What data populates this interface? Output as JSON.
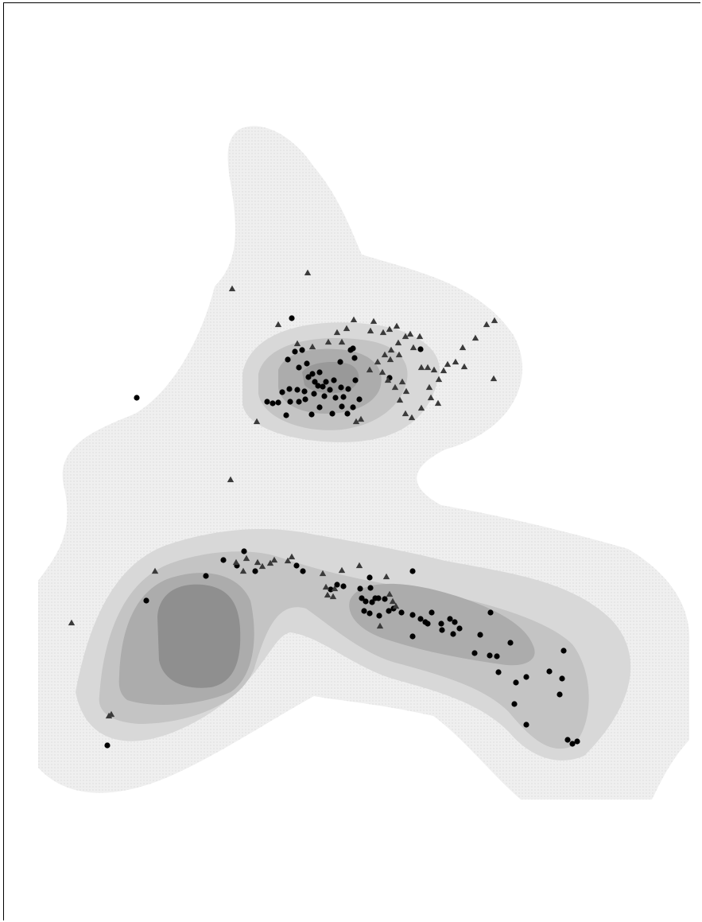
{
  "chart_data": {
    "type": "scatter",
    "subtype": "contour-density-overlay",
    "title": "",
    "xlabel": "",
    "ylabel": "",
    "axes_visible": false,
    "grid": false,
    "legend": "none",
    "background_style": "filled density contours (light to dark gray)",
    "colors": {
      "level_1": "#efefef",
      "level_2": "#d8d8d8",
      "level_3": "#c4c4c4",
      "level_4": "#acacac",
      "level_5": "#8f8f8f",
      "circle": "#000000",
      "triangle": "#3a3a3a"
    },
    "series": [
      {
        "marker": "circle",
        "points": [
          [
            367,
            400
          ],
          [
            172,
            500
          ],
          [
            428,
            455
          ],
          [
            441,
            440
          ],
          [
            446,
            450
          ],
          [
            444,
            438
          ],
          [
            380,
            440
          ],
          [
            371,
            442
          ],
          [
            362,
            452
          ],
          [
            376,
            462
          ],
          [
            386,
            457
          ],
          [
            393,
            470
          ],
          [
            402,
            468
          ],
          [
            410,
            480
          ],
          [
            420,
            478
          ],
          [
            429,
            487
          ],
          [
            438,
            489
          ],
          [
            447,
            478
          ],
          [
            452,
            502
          ],
          [
            444,
            512
          ],
          [
            437,
            520
          ],
          [
            430,
            511
          ],
          [
            418,
            520
          ],
          [
            402,
            512
          ],
          [
            392,
            521
          ],
          [
            384,
            502
          ],
          [
            376,
            505
          ],
          [
            365,
            505
          ],
          [
            360,
            522
          ],
          [
            350,
            506
          ],
          [
            343,
            507
          ],
          [
            336,
            505
          ],
          [
            355,
            493
          ],
          [
            364,
            489
          ],
          [
            374,
            490
          ],
          [
            383,
            492
          ],
          [
            395,
            495
          ],
          [
            400,
            485
          ],
          [
            408,
            498
          ],
          [
            415,
            490
          ],
          [
            422,
            500
          ],
          [
            432,
            499
          ],
          [
            396,
            480
          ],
          [
            406,
            486
          ],
          [
            388,
            474
          ],
          [
            490,
            475
          ],
          [
            529,
            439
          ],
          [
            307,
            693
          ],
          [
            281,
            704
          ],
          [
            298,
            711
          ],
          [
            259,
            724
          ],
          [
            321,
            718
          ],
          [
            184,
            755
          ],
          [
            135,
            937
          ],
          [
            373,
            711
          ],
          [
            381,
            718
          ],
          [
            519,
            718
          ],
          [
            416,
            741
          ],
          [
            424,
            735
          ],
          [
            432,
            737
          ],
          [
            453,
            740
          ],
          [
            465,
            726
          ],
          [
            466,
            739
          ],
          [
            472,
            752
          ],
          [
            460,
            756
          ],
          [
            455,
            752
          ],
          [
            468,
            757
          ],
          [
            476,
            752
          ],
          [
            484,
            753
          ],
          [
            489,
            768
          ],
          [
            477,
            774
          ],
          [
            465,
            771
          ],
          [
            458,
            768
          ],
          [
            495,
            765
          ],
          [
            505,
            770
          ],
          [
            519,
            773
          ],
          [
            529,
            778
          ],
          [
            535,
            782
          ],
          [
            538,
            784
          ],
          [
            543,
            770
          ],
          [
            555,
            784
          ],
          [
            556,
            792
          ],
          [
            566,
            778
          ],
          [
            572,
            782
          ],
          [
            578,
            790
          ],
          [
            570,
            797
          ],
          [
            519,
            800
          ],
          [
            604,
            798
          ],
          [
            617,
            770
          ],
          [
            642,
            808
          ],
          [
            597,
            821
          ],
          [
            616,
            824
          ],
          [
            625,
            825
          ],
          [
            627,
            845
          ],
          [
            649,
            858
          ],
          [
            662,
            851
          ],
          [
            691,
            844
          ],
          [
            707,
            853
          ],
          [
            709,
            818
          ],
          [
            704,
            873
          ],
          [
            647,
            885
          ],
          [
            662,
            911
          ],
          [
            714,
            930
          ],
          [
            720,
            935
          ],
          [
            726,
            932
          ]
        ]
      },
      {
        "marker": "triangle",
        "points": [
          [
            387,
            343
          ],
          [
            292,
            363
          ],
          [
            350,
            408
          ],
          [
            436,
            413
          ],
          [
            445,
            402
          ],
          [
            424,
            418
          ],
          [
            430,
            430
          ],
          [
            413,
            430
          ],
          [
            393,
            436
          ],
          [
            374,
            432
          ],
          [
            470,
            404
          ],
          [
            466,
            416
          ],
          [
            482,
            418
          ],
          [
            490,
            414
          ],
          [
            499,
            410
          ],
          [
            510,
            423
          ],
          [
            516,
            420
          ],
          [
            528,
            423
          ],
          [
            492,
            440
          ],
          [
            501,
            431
          ],
          [
            520,
            437
          ],
          [
            502,
            446
          ],
          [
            484,
            446
          ],
          [
            475,
            455
          ],
          [
            465,
            465
          ],
          [
            481,
            468
          ],
          [
            488,
            478
          ],
          [
            497,
            487
          ],
          [
            506,
            480
          ],
          [
            511,
            492
          ],
          [
            503,
            503
          ],
          [
            510,
            520
          ],
          [
            518,
            525
          ],
          [
            530,
            513
          ],
          [
            542,
            500
          ],
          [
            551,
            507
          ],
          [
            540,
            487
          ],
          [
            552,
            477
          ],
          [
            530,
            462
          ],
          [
            538,
            462
          ],
          [
            546,
            465
          ],
          [
            558,
            466
          ],
          [
            563,
            458
          ],
          [
            573,
            455
          ],
          [
            584,
            461
          ],
          [
            582,
            437
          ],
          [
            598,
            425
          ],
          [
            612,
            408
          ],
          [
            622,
            403
          ],
          [
            621,
            476
          ],
          [
            491,
            452
          ],
          [
            454,
            527
          ],
          [
            448,
            530
          ],
          [
            323,
            530
          ],
          [
            290,
            603
          ],
          [
            90,
            783
          ],
          [
            137,
            900
          ],
          [
            140,
            898
          ],
          [
            195,
            718
          ],
          [
            297,
            707
          ],
          [
            310,
            702
          ],
          [
            324,
            707
          ],
          [
            330,
            712
          ],
          [
            340,
            708
          ],
          [
            345,
            704
          ],
          [
            362,
            705
          ],
          [
            367,
            700
          ],
          [
            306,
            718
          ],
          [
            406,
            721
          ],
          [
            430,
            717
          ],
          [
            452,
            711
          ],
          [
            486,
            725
          ],
          [
            412,
            748
          ],
          [
            419,
            750
          ],
          [
            490,
            747
          ],
          [
            494,
            756
          ],
          [
            498,
            762
          ],
          [
            478,
            787
          ],
          [
            410,
            738
          ],
          [
            421,
            740
          ]
        ]
      }
    ]
  }
}
